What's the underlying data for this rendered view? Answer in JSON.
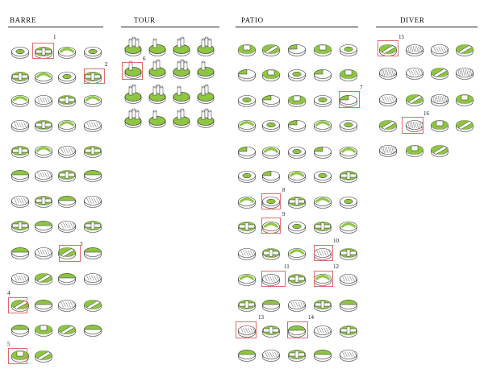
{
  "columns": [
    {
      "title": "BARRE"
    },
    {
      "title": "TOUR"
    },
    {
      "title": "PATIO"
    },
    {
      "title": "DIVER"
    }
  ],
  "markers": [
    "1",
    "2",
    "3",
    "4",
    "5",
    "6",
    "7",
    "8",
    "9",
    "10",
    "11",
    "12",
    "13",
    "14",
    "15",
    "16"
  ],
  "colors": {
    "accent": "#8ec641",
    "outline": "#333333",
    "marker": "#e06a6a",
    "pale": "#ffffff"
  }
}
